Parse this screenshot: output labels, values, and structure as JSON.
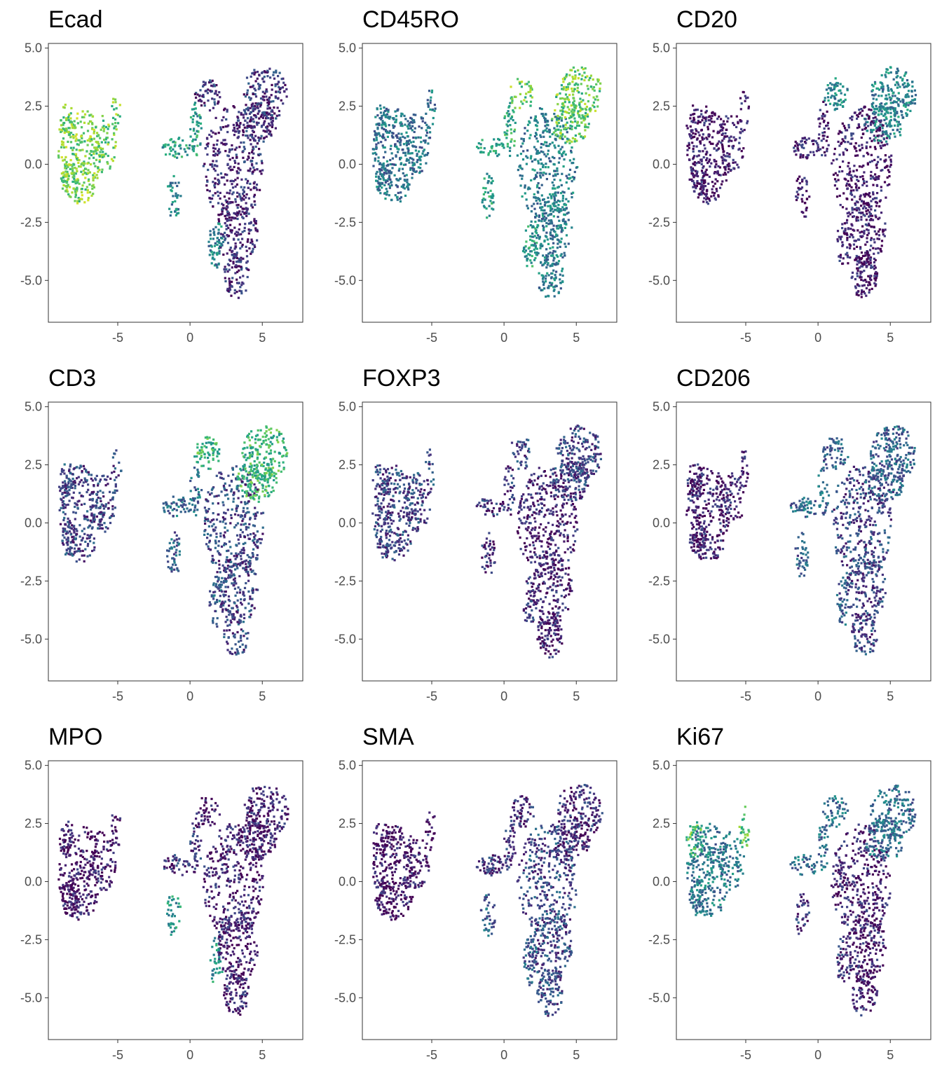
{
  "figure": {
    "colors": {
      "palette": [
        "#440154",
        "#472d7b",
        "#3b528b",
        "#2c728e",
        "#21918c",
        "#28ae80",
        "#5ec962",
        "#addc30",
        "#fde725"
      ],
      "panel_border": "#333333",
      "tick_text": "#4d4d4d"
    }
  },
  "chart_data": [
    {
      "type": "scatter",
      "title": "Ecad",
      "xlabel": "",
      "ylabel": "",
      "xlim": [
        -9.8,
        7.8
      ],
      "ylim": [
        -6.8,
        5.2
      ],
      "x_ticks": [
        "-5",
        "0",
        "5"
      ],
      "y_ticks": [
        "5.0",
        "2.5",
        "0.0",
        "-2.5",
        "-5.0"
      ],
      "grid": false,
      "expression": {
        "left_cluster": 0.78,
        "left_top_edge": 0.78,
        "right_trunk": 0.12,
        "right_upper": 0.15,
        "left_branch_arms": 0.55,
        "lower_left_arm": 0.45
      }
    },
    {
      "type": "scatter",
      "title": "CD45RO",
      "xlabel": "",
      "ylabel": "",
      "xlim": [
        -9.8,
        7.8
      ],
      "ylim": [
        -6.8,
        5.2
      ],
      "x_ticks": [
        "-5",
        "0",
        "5"
      ],
      "y_ticks": [
        "5.0",
        "2.5",
        "0.0",
        "-2.5",
        "-5.0"
      ],
      "grid": false,
      "expression": {
        "left_cluster": 0.38,
        "left_top_edge": 0.4,
        "right_trunk": 0.42,
        "right_upper": 0.75,
        "left_branch_arms": 0.6,
        "lower_left_arm": 0.55
      }
    },
    {
      "type": "scatter",
      "title": "CD20",
      "xlabel": "",
      "ylabel": "",
      "xlim": [
        -9.8,
        7.8
      ],
      "ylim": [
        -6.8,
        5.2
      ],
      "x_ticks": [
        "-5",
        "0",
        "5"
      ],
      "y_ticks": [
        "5.0",
        "2.5",
        "0.0",
        "-2.5",
        "-5.0"
      ],
      "grid": false,
      "expression": {
        "left_cluster": 0.05,
        "left_top_edge": 0.05,
        "right_trunk": 0.07,
        "right_upper": 0.45,
        "left_branch_arms": 0.08,
        "lower_left_arm": 0.08
      }
    },
    {
      "type": "scatter",
      "title": "CD3",
      "xlabel": "",
      "ylabel": "",
      "xlim": [
        -9.8,
        7.8
      ],
      "ylim": [
        -6.8,
        5.2
      ],
      "x_ticks": [
        "-5",
        "0",
        "5"
      ],
      "y_ticks": [
        "5.0",
        "2.5",
        "0.0",
        "-2.5",
        "-5.0"
      ],
      "grid": false,
      "expression": {
        "left_cluster": 0.2,
        "left_top_edge": 0.22,
        "right_trunk": 0.2,
        "right_upper": 0.65,
        "left_branch_arms": 0.35,
        "lower_left_arm": 0.3
      }
    },
    {
      "type": "scatter",
      "title": "FOXP3",
      "xlabel": "",
      "ylabel": "",
      "xlim": [
        -9.8,
        7.8
      ],
      "ylim": [
        -6.8,
        5.2
      ],
      "x_ticks": [
        "-5",
        "0",
        "5"
      ],
      "y_ticks": [
        "5.0",
        "2.5",
        "0.0",
        "-2.5",
        "-5.0"
      ],
      "grid": false,
      "expression": {
        "left_cluster": 0.2,
        "left_top_edge": 0.2,
        "right_trunk": 0.08,
        "right_upper": 0.2,
        "left_branch_arms": 0.15,
        "lower_left_arm": 0.12
      }
    },
    {
      "type": "scatter",
      "title": "CD206",
      "xlabel": "",
      "ylabel": "",
      "xlim": [
        -9.8,
        7.8
      ],
      "ylim": [
        -6.8,
        5.2
      ],
      "x_ticks": [
        "-5",
        "0",
        "5"
      ],
      "y_ticks": [
        "5.0",
        "2.5",
        "0.0",
        "-2.5",
        "-5.0"
      ],
      "grid": false,
      "expression": {
        "left_cluster": 0.08,
        "left_top_edge": 0.08,
        "right_trunk": 0.2,
        "right_upper": 0.3,
        "left_branch_arms": 0.35,
        "lower_left_arm": 0.3
      }
    },
    {
      "type": "scatter",
      "title": "MPO",
      "xlabel": "",
      "ylabel": "",
      "xlim": [
        -9.8,
        7.8
      ],
      "ylim": [
        -6.8,
        5.2
      ],
      "x_ticks": [
        "-5",
        "0",
        "5"
      ],
      "y_ticks": [
        "5.0",
        "2.5",
        "0.0",
        "-2.5",
        "-5.0"
      ],
      "grid": false,
      "expression": {
        "left_cluster": 0.06,
        "left_top_edge": 0.06,
        "right_trunk": 0.08,
        "right_upper": 0.07,
        "left_branch_arms": 0.15,
        "lower_left_arm": 0.5
      }
    },
    {
      "type": "scatter",
      "title": "SMA",
      "xlabel": "",
      "ylabel": "",
      "xlim": [
        -9.8,
        7.8
      ],
      "ylim": [
        -6.8,
        5.2
      ],
      "x_ticks": [
        "-5",
        "0",
        "5"
      ],
      "y_ticks": [
        "5.0",
        "2.5",
        "0.0",
        "-2.5",
        "-5.0"
      ],
      "grid": false,
      "expression": {
        "left_cluster": 0.05,
        "left_top_edge": 0.05,
        "right_trunk": 0.22,
        "right_upper": 0.12,
        "left_branch_arms": 0.15,
        "lower_left_arm": 0.3
      }
    },
    {
      "type": "scatter",
      "title": "Ki67",
      "xlabel": "",
      "ylabel": "",
      "xlim": [
        -9.8,
        7.8
      ],
      "ylim": [
        -6.8,
        5.2
      ],
      "x_ticks": [
        "-5",
        "0",
        "5"
      ],
      "y_ticks": [
        "5.0",
        "2.5",
        "0.0",
        "-2.5",
        "-5.0"
      ],
      "grid": false,
      "expression": {
        "left_cluster": 0.4,
        "left_top_edge": 0.7,
        "right_trunk": 0.07,
        "right_upper": 0.35,
        "left_branch_arms": 0.35,
        "lower_left_arm": 0.15
      }
    }
  ]
}
